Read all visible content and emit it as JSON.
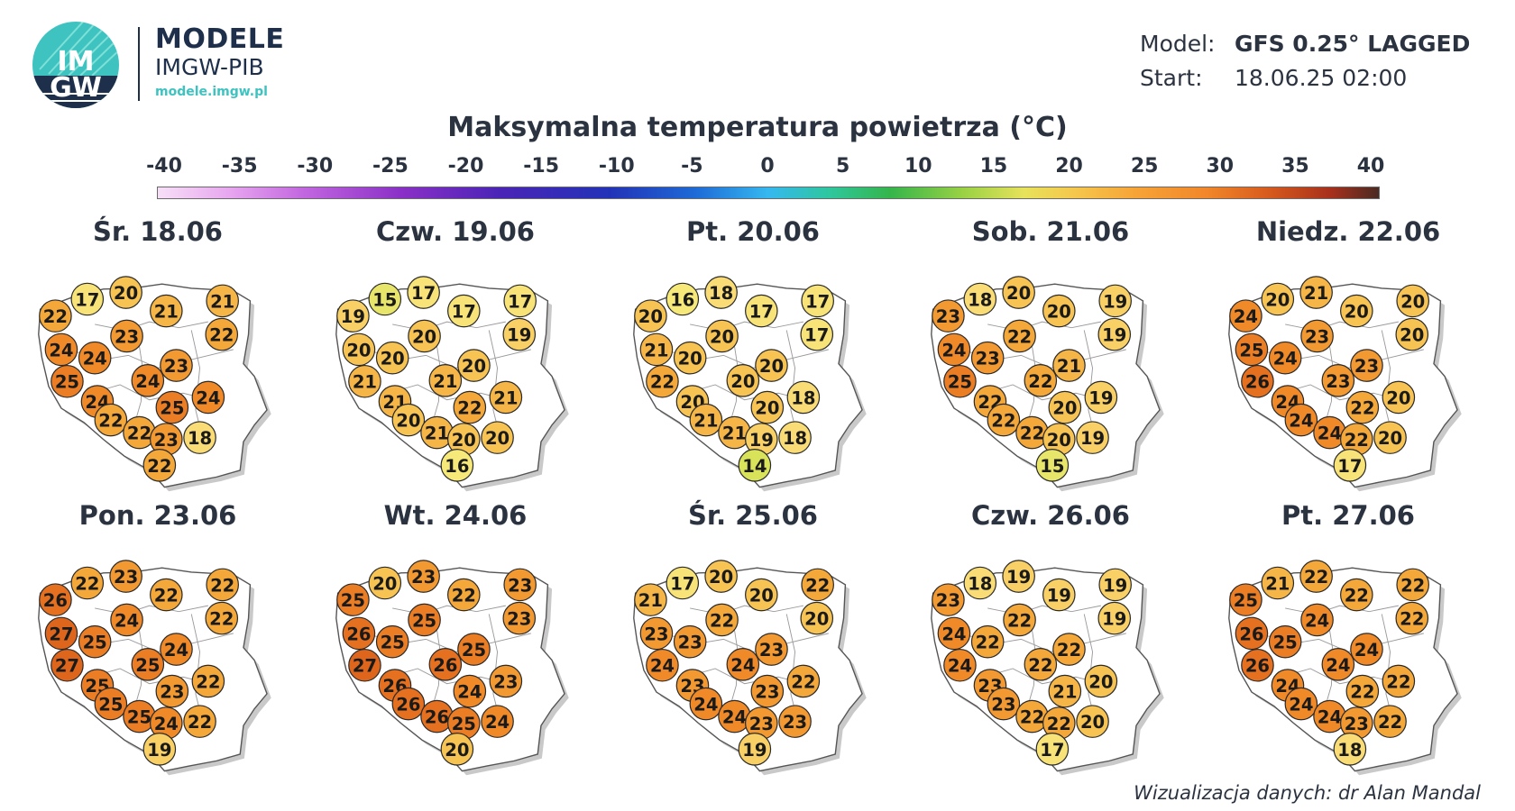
{
  "brand": {
    "logo_text_top": "IM",
    "logo_text_bottom": "GW",
    "title": "MODELE",
    "subtitle": "IMGW-PIB",
    "url": "modele.imgw.pl"
  },
  "meta": {
    "model_key": "Model:",
    "model_value": "GFS 0.25° LAGGED",
    "start_key": "Start:",
    "start_value": "18.06.25  02:00"
  },
  "title": "Maksymalna temperatura powietrza (°C)",
  "colorbar": {
    "ticks": [
      "-40",
      "-35",
      "-30",
      "-25",
      "-20",
      "-15",
      "-10",
      "-5",
      "0",
      "5",
      "10",
      "15",
      "20",
      "25",
      "30",
      "35",
      "40"
    ]
  },
  "days": [
    {
      "label": "Śr. 18.06",
      "values": [
        22,
        17,
        20,
        21,
        21,
        24,
        23,
        22,
        25,
        24,
        24,
        23,
        24,
        22,
        22,
        25,
        24,
        23,
        22,
        18
      ]
    },
    {
      "label": "Czw. 19.06",
      "values": [
        19,
        15,
        17,
        17,
        17,
        20,
        20,
        19,
        21,
        20,
        21,
        20,
        21,
        20,
        21,
        22,
        21,
        20,
        16,
        20
      ]
    },
    {
      "label": "Pt. 20.06",
      "values": [
        20,
        16,
        18,
        17,
        17,
        21,
        20,
        17,
        22,
        20,
        20,
        20,
        20,
        21,
        21,
        20,
        18,
        19,
        14,
        18
      ]
    },
    {
      "label": "Sob. 21.06",
      "values": [
        23,
        18,
        20,
        20,
        19,
        24,
        22,
        19,
        25,
        23,
        22,
        21,
        22,
        22,
        22,
        20,
        19,
        20,
        15,
        19
      ]
    },
    {
      "label": "Niedz. 22.06",
      "values": [
        24,
        20,
        21,
        20,
        20,
        25,
        23,
        20,
        26,
        24,
        23,
        23,
        24,
        24,
        24,
        22,
        20,
        22,
        17,
        20
      ]
    },
    {
      "label": "Pon. 23.06",
      "values": [
        26,
        22,
        23,
        22,
        22,
        27,
        24,
        22,
        27,
        25,
        25,
        24,
        25,
        25,
        25,
        23,
        22,
        24,
        19,
        22
      ]
    },
    {
      "label": "Wt. 24.06",
      "values": [
        25,
        20,
        23,
        22,
        23,
        26,
        25,
        23,
        27,
        25,
        26,
        25,
        26,
        26,
        26,
        24,
        23,
        25,
        20,
        24
      ]
    },
    {
      "label": "Śr. 25.06",
      "values": [
        21,
        17,
        20,
        20,
        22,
        23,
        22,
        20,
        24,
        23,
        24,
        23,
        23,
        24,
        24,
        23,
        22,
        23,
        19,
        23
      ]
    },
    {
      "label": "Czw. 26.06",
      "values": [
        23,
        18,
        19,
        19,
        19,
        24,
        22,
        19,
        24,
        22,
        22,
        22,
        23,
        23,
        22,
        21,
        20,
        22,
        17,
        20
      ]
    },
    {
      "label": "Pt. 27.06",
      "values": [
        25,
        21,
        22,
        22,
        22,
        26,
        24,
        22,
        26,
        25,
        24,
        24,
        24,
        24,
        24,
        22,
        22,
        23,
        18,
        22
      ]
    }
  ],
  "credit": "Wizualizacja danych: dr Alan Mandal"
}
